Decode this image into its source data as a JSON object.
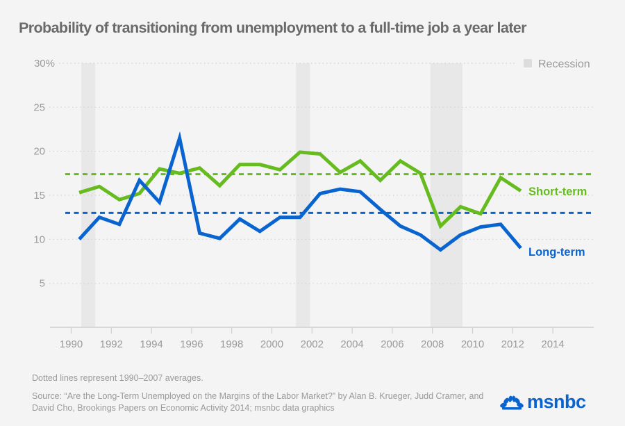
{
  "chart_data": {
    "type": "line",
    "title": "Probability of transitioning from unemployment to a full-time job a year later",
    "xlabel": "",
    "ylabel": "",
    "y_unit_suffix": "%",
    "ylim": [
      0,
      30
    ],
    "xlim": [
      1989.5,
      2016.2
    ],
    "y_ticks": [
      {
        "value": 30,
        "label": "30%"
      },
      {
        "value": 25,
        "label": "25"
      },
      {
        "value": 20,
        "label": "20"
      },
      {
        "value": 15,
        "label": "15"
      },
      {
        "value": 10,
        "label": "10"
      },
      {
        "value": 5,
        "label": "5"
      }
    ],
    "x_ticks": [
      1990,
      1992,
      1994,
      1996,
      1998,
      2000,
      2002,
      2004,
      2006,
      2008,
      2010,
      2012,
      2014
    ],
    "grid": "horizontal-dotted",
    "x": [
      1990,
      1991,
      1992,
      1993,
      1994,
      1995,
      1996,
      1997,
      1998,
      1999,
      2000,
      2001,
      2002,
      2003,
      2004,
      2005,
      2006,
      2007,
      2008,
      2009,
      2010,
      2011,
      2012
    ],
    "series": [
      {
        "name": "Short-term",
        "color": "#66bb1e",
        "values": [
          15.3,
          16.0,
          14.5,
          15.2,
          18.0,
          17.5,
          18.1,
          16.1,
          18.5,
          18.5,
          17.9,
          19.9,
          19.7,
          17.6,
          18.9,
          16.7,
          18.9,
          17.5,
          11.5,
          13.7,
          12.9,
          17.0,
          15.5
        ],
        "average": 17.4
      },
      {
        "name": "Long-term",
        "color": "#0a64d0",
        "values": [
          10.0,
          12.5,
          11.7,
          16.7,
          14.2,
          21.5,
          10.7,
          10.1,
          12.3,
          10.9,
          12.5,
          12.5,
          15.2,
          15.7,
          15.4,
          13.4,
          11.5,
          10.5,
          8.8,
          10.5,
          11.4,
          11.7,
          9.0
        ],
        "average": 13.0
      }
    ],
    "averages_period": "1990–2007",
    "recessions": [
      {
        "start": 1990.5,
        "end": 1991.2
      },
      {
        "start": 2001.2,
        "end": 2001.9
      },
      {
        "start": 2007.9,
        "end": 2009.5
      }
    ],
    "legend": [
      {
        "label": "Recession",
        "color": "#dcdcdc"
      }
    ],
    "legend_position": "top-right",
    "annotations": [
      "Short-term",
      "Long-term"
    ]
  },
  "footnote": "Dotted lines represent 1990–2007 averages.",
  "source": "Source: “Are the Long-Term Unemployed on the Margins of the Labor Market?” by Alan B. Krueger, Judd Cramer, and David Cho, Brookings Papers on Economic Activity 2014; msnbc data graphics",
  "logo": {
    "text": "msnbc",
    "icon": "peacock-icon",
    "color": "#0a64d0"
  },
  "colors": {
    "background": "#f4f4f4",
    "recession": "#e8e8e8",
    "text": "#9a9a9a",
    "title": "#6a6a6a"
  }
}
